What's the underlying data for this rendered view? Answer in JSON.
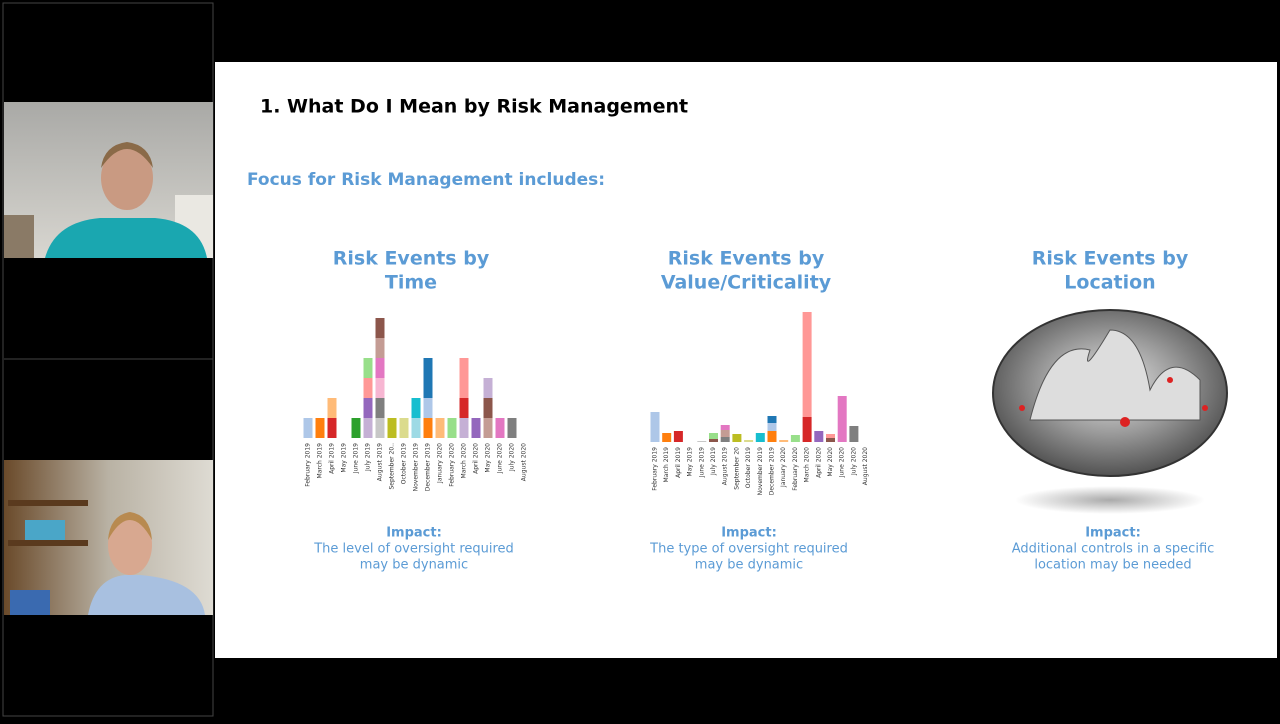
{
  "slide": {
    "title": "1. What Do I Mean by Risk Management",
    "subtitle": "Focus for Risk Management includes:",
    "panels": [
      {
        "heading": [
          "Risk Events by",
          "Time"
        ],
        "impact_label": "Impact:",
        "impact_text": [
          "The level of oversight required",
          "may be dynamic"
        ]
      },
      {
        "heading": [
          "Risk Events by",
          "Value/Criticality"
        ],
        "impact_label": "Impact:",
        "impact_text": [
          "The type of oversight required",
          "may be dynamic"
        ]
      },
      {
        "heading": [
          "Risk Events by",
          "Location"
        ],
        "impact_label": "Impact:",
        "impact_text": [
          "Additional controls in a specific",
          "location may be needed"
        ]
      }
    ],
    "charts": [
      {
        "type": "stacked-bar",
        "ylim": [
          0,
          6
        ],
        "categories": [
          "February 2019",
          "March 2019",
          "April 2019",
          "May 2019",
          "June 2019",
          "July 2019",
          "August 2019",
          "September 20..",
          "October 2019",
          "November 2019",
          "December 2019",
          "January 2020",
          "February 2020",
          "March 2020",
          "April 2020",
          "May 2020",
          "June 2020",
          "July 2020",
          "August 2020"
        ],
        "stacks": [
          [
            {
              "color": "#aec7e8",
              "value": 1
            }
          ],
          [
            {
              "color": "#ff7f0e",
              "value": 1
            }
          ],
          [
            {
              "color": "#d62728",
              "value": 1
            },
            {
              "color": "#ffbb78",
              "value": 1
            }
          ],
          [],
          [
            {
              "color": "#2ca02c",
              "value": 1
            }
          ],
          [
            {
              "color": "#c5b0d5",
              "value": 1
            },
            {
              "color": "#9467bd",
              "value": 1
            },
            {
              "color": "#ff9896",
              "value": 1
            },
            {
              "color": "#98df8a",
              "value": 1
            }
          ],
          [
            {
              "color": "#c7c7c7",
              "value": 1
            },
            {
              "color": "#7f7f7f",
              "value": 1
            },
            {
              "color": "#f7b6d2",
              "value": 1
            },
            {
              "color": "#e377c2",
              "value": 1
            },
            {
              "color": "#c49c94",
              "value": 1
            },
            {
              "color": "#8c564b",
              "value": 1
            }
          ],
          [
            {
              "color": "#bcbd22",
              "value": 1
            }
          ],
          [
            {
              "color": "#dbdb8d",
              "value": 1
            }
          ],
          [
            {
              "color": "#9edae5",
              "value": 1
            },
            {
              "color": "#17becf",
              "value": 1
            }
          ],
          [
            {
              "color": "#ff7f0e",
              "value": 1
            },
            {
              "color": "#aec7e8",
              "value": 1
            },
            {
              "color": "#1f77b4",
              "value": 2
            }
          ],
          [
            {
              "color": "#ffbb78",
              "value": 1
            }
          ],
          [
            {
              "color": "#98df8a",
              "value": 1
            }
          ],
          [
            {
              "color": "#c5b0d5",
              "value": 1
            },
            {
              "color": "#9467bd",
              "value": 0
            },
            {
              "color": "#d62728",
              "value": 1
            },
            {
              "color": "#ff9896",
              "value": 1
            },
            {
              "color": "#ff9896",
              "value": 1
            }
          ],
          [
            {
              "color": "#9467bd",
              "value": 1
            }
          ],
          [
            {
              "color": "#c49c94",
              "value": 1
            },
            {
              "color": "#8c564b",
              "value": 1
            },
            {
              "color": "#c5b0d5",
              "value": 1
            }
          ],
          [
            {
              "color": "#e377c2",
              "value": 1
            }
          ],
          [
            {
              "color": "#7f7f7f",
              "value": 1
            }
          ],
          []
        ]
      },
      {
        "type": "stacked-bar",
        "ylim": [
          0,
          130
        ],
        "categories": [
          "February 2019",
          "March 2019",
          "April 2019",
          "May 2019",
          "June 2019",
          "July 2019",
          "August 2019",
          "September 20",
          "October 2019",
          "November 2019",
          "December 2019",
          "January 2020",
          "February 2020",
          "March 2020",
          "April 2020",
          "May 2020",
          "June 2020",
          "July 2020",
          "August 2020"
        ],
        "stacks": [
          [
            {
              "color": "#aec7e8",
              "value": 30
            }
          ],
          [
            {
              "color": "#ff7f0e",
              "value": 9
            }
          ],
          [
            {
              "color": "#d62728",
              "value": 11
            }
          ],
          [],
          [
            {
              "color": "#c7c7c7",
              "value": 1
            }
          ],
          [
            {
              "color": "#8c564b",
              "value": 3
            },
            {
              "color": "#98df8a",
              "value": 6
            }
          ],
          [
            {
              "color": "#7f7f7f",
              "value": 5
            },
            {
              "color": "#c49c94",
              "value": 7
            },
            {
              "color": "#e377c2",
              "value": 5
            }
          ],
          [
            {
              "color": "#bcbd22",
              "value": 8
            }
          ],
          [
            {
              "color": "#dbdb8d",
              "value": 2
            }
          ],
          [
            {
              "color": "#17becf",
              "value": 9
            }
          ],
          [
            {
              "color": "#ff7f0e",
              "value": 11
            },
            {
              "color": "#aec7e8",
              "value": 8
            },
            {
              "color": "#1f77b4",
              "value": 7
            }
          ],
          [
            {
              "color": "#ffbb78",
              "value": 2
            }
          ],
          [
            {
              "color": "#98df8a",
              "value": 7
            }
          ],
          [
            {
              "color": "#d62728",
              "value": 25
            },
            {
              "color": "#ff9896",
              "value": 105
            }
          ],
          [
            {
              "color": "#9467bd",
              "value": 11
            }
          ],
          [
            {
              "color": "#8c564b",
              "value": 4
            },
            {
              "color": "#ff9896",
              "value": 4
            }
          ],
          [
            {
              "color": "#e377c2",
              "value": 46
            }
          ],
          [
            {
              "color": "#7f7f7f",
              "value": 16
            }
          ],
          []
        ]
      }
    ]
  }
}
